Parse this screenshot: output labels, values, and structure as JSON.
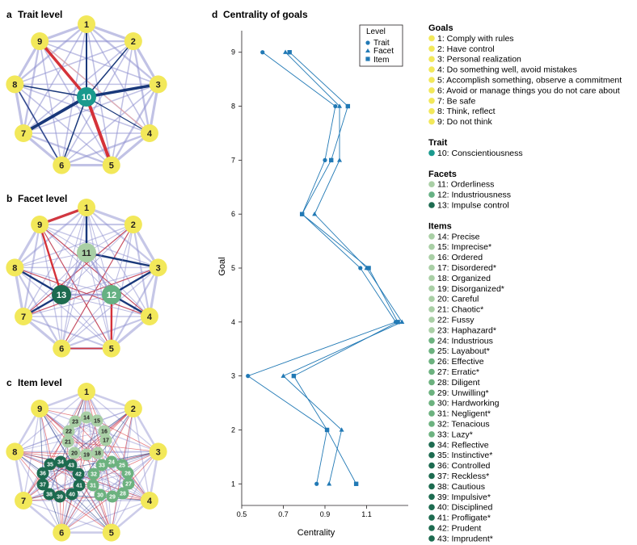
{
  "panels": {
    "a": {
      "letter": "a",
      "title": "Trait level"
    },
    "b": {
      "letter": "b",
      "title": "Facet level"
    },
    "c": {
      "letter": "c",
      "title": "Item level"
    },
    "d": {
      "letter": "d",
      "title": "Centrality of goals"
    }
  },
  "colors": {
    "goal_node": "#f2e85a",
    "trait_node": "#1a9a8e",
    "facet_nodes": [
      "#a9cfa5",
      "#66b183",
      "#1d6b50"
    ],
    "item_light": "#a9cfa5",
    "item_mid": "#6cb27f",
    "item_dark": "#1d6b50",
    "edge_positive": "#8e8fcf",
    "edge_strong_positive": "#0d2d73",
    "edge_negative": "#d3272e",
    "edge_weak_negative": "#e8aaa8",
    "series_blue": "#2179b5"
  },
  "network_a": {
    "outer_labels": [
      "1",
      "2",
      "3",
      "4",
      "5",
      "6",
      "7",
      "8",
      "9"
    ],
    "center_labels": [
      "10"
    ]
  },
  "network_b": {
    "outer_labels": [
      "1",
      "2",
      "3",
      "4",
      "5",
      "6",
      "7",
      "8",
      "9"
    ],
    "center_labels": [
      "11",
      "12",
      "13"
    ]
  },
  "network_c": {
    "outer_labels": [
      "1",
      "2",
      "3",
      "4",
      "5",
      "6",
      "7",
      "8",
      "9"
    ],
    "item_labels": [
      "14",
      "15",
      "16",
      "17",
      "18",
      "19",
      "20",
      "21",
      "22",
      "23",
      "24",
      "25",
      "26",
      "27",
      "28",
      "29",
      "30",
      "31",
      "32",
      "33",
      "34",
      "35",
      "36",
      "37",
      "38",
      "39",
      "40",
      "41",
      "42",
      "43"
    ]
  },
  "chart_data": {
    "type": "line",
    "title": "Centrality of goals",
    "xlabel": "Centrality",
    "ylabel": "Goal",
    "xlim": [
      0.5,
      1.3
    ],
    "xticks": [
      "0.5",
      "0.7",
      "0.9",
      "1.1"
    ],
    "xtick_values": [
      0.5,
      0.7,
      0.9,
      1.1
    ],
    "ylim": [
      0.6,
      9.4
    ],
    "yticks": [
      "1",
      "2",
      "3",
      "4",
      "5",
      "6",
      "7",
      "8",
      "9"
    ],
    "ytick_values": [
      1,
      2,
      3,
      4,
      5,
      6,
      7,
      8,
      9
    ],
    "legend": {
      "title": "Level",
      "position": "top-right"
    },
    "series": [
      {
        "name": "Trait",
        "marker": "circle",
        "points": [
          [
            0.86,
            1
          ],
          [
            0.91,
            2
          ],
          [
            0.53,
            3
          ],
          [
            1.24,
            4
          ],
          [
            1.07,
            5
          ],
          [
            0.79,
            6
          ],
          [
            0.9,
            7
          ],
          [
            0.95,
            8
          ],
          [
            0.6,
            9
          ]
        ]
      },
      {
        "name": "Facet",
        "marker": "triangle",
        "points": [
          [
            0.92,
            1
          ],
          [
            0.98,
            2
          ],
          [
            0.7,
            3
          ],
          [
            1.27,
            4
          ],
          [
            1.1,
            5
          ],
          [
            0.85,
            6
          ],
          [
            0.97,
            7
          ],
          [
            0.97,
            8
          ],
          [
            0.71,
            9
          ]
        ]
      },
      {
        "name": "Item",
        "marker": "square",
        "points": [
          [
            1.05,
            1
          ],
          [
            0.91,
            2
          ],
          [
            0.75,
            3
          ],
          [
            1.25,
            4
          ],
          [
            1.11,
            5
          ],
          [
            0.79,
            6
          ],
          [
            0.93,
            7
          ],
          [
            1.01,
            8
          ],
          [
            0.73,
            9
          ]
        ]
      }
    ]
  },
  "legend_right": {
    "goals_head": "Goals",
    "goals": [
      "1: Comply with rules",
      "2: Have control",
      "3: Personal realization",
      "4: Do something well, avoid mistakes",
      "5: Accomplish something, observe a commitment",
      "6: Avoid or manage things you do not care about",
      "7: Be safe",
      "8: Think, reflect",
      "9: Do not think"
    ],
    "trait_head": "Trait",
    "traits": [
      "10: Conscientiousness"
    ],
    "facets_head": "Facets",
    "facets": [
      "11: Orderliness",
      "12: Industriousness",
      "13: Impulse control"
    ],
    "items_head": "Items",
    "items": [
      "14: Precise",
      "15: Imprecise*",
      "16: Ordered",
      "17: Disordered*",
      "18: Organized",
      "19: Disorganized*",
      "20: Careful",
      "21: Chaotic*",
      "22: Fussy",
      "23: Haphazard*",
      "24: Industrious",
      "25: Layabout*",
      "26: Effective",
      "27: Erratic*",
      "28: Diligent",
      "29: Unwilling*",
      "30: Hardworking",
      "31: Negligent*",
      "32: Tenacious",
      "33: Lazy*",
      "34: Reflective",
      "35: Instinctive*",
      "36: Controlled",
      "37: Reckless*",
      "38: Cautious",
      "39: Impulsive*",
      "40: Disciplined",
      "41: Profligate*",
      "42: Prudent",
      "43: Imprudent*"
    ]
  }
}
